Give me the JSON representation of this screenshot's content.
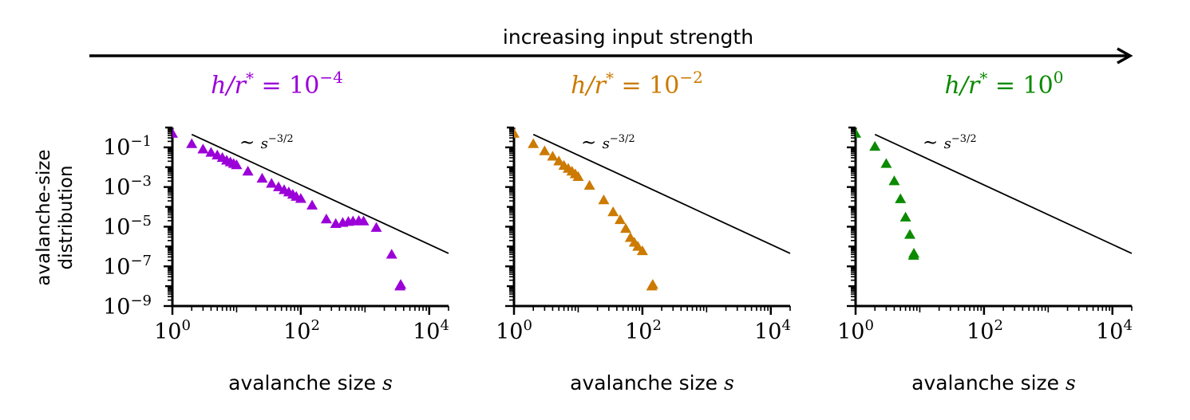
{
  "header": {
    "text": "increasing input strength"
  },
  "y_axis_label": {
    "line1": "avalanche-size",
    "line2": "distribution"
  },
  "chart_data": [
    {
      "type": "scatter",
      "title_var": "h/r",
      "title_sup": "*",
      "title_eq": " = 10",
      "title_exp": "−4",
      "color": "#9B00D8",
      "xlabel_text": "avalanche size ",
      "xlabel_var": "s",
      "xscale": "log",
      "yscale": "log",
      "xlim": [
        1,
        20000
      ],
      "ylim": [
        1e-09,
        1
      ],
      "x_ticks": [
        {
          "base": "10",
          "exp": "0",
          "value": 1
        },
        {
          "base": "10",
          "exp": "2",
          "value": 100
        },
        {
          "base": "10",
          "exp": "4",
          "value": 10000
        }
      ],
      "y_ticks": [
        {
          "base": "10",
          "exp": "−1",
          "value": 0.1
        },
        {
          "base": "10",
          "exp": "−3",
          "value": 0.001
        },
        {
          "base": "10",
          "exp": "−5",
          "value": 1e-05
        },
        {
          "base": "10",
          "exp": "−7",
          "value": 1e-07
        },
        {
          "base": "10",
          "exp": "−9",
          "value": 1e-09
        }
      ],
      "reference_line": {
        "label_prefix": "∼ ",
        "label_base": "s",
        "label_exp": "−3/2",
        "x": [
          2,
          20000
        ],
        "y": [
          0.45,
          4.5e-07
        ]
      },
      "points": [
        {
          "x": 1,
          "y": 0.5
        },
        {
          "x": 2,
          "y": 0.15
        },
        {
          "x": 3,
          "y": 0.08
        },
        {
          "x": 4,
          "y": 0.055
        },
        {
          "x": 5,
          "y": 0.04
        },
        {
          "x": 6,
          "y": 0.03
        },
        {
          "x": 7,
          "y": 0.022
        },
        {
          "x": 8,
          "y": 0.018
        },
        {
          "x": 9,
          "y": 0.015
        },
        {
          "x": 10,
          "y": 0.013
        },
        {
          "x": 15,
          "y": 0.0062
        },
        {
          "x": 25,
          "y": 0.0027
        },
        {
          "x": 35,
          "y": 0.0015
        },
        {
          "x": 45,
          "y": 0.001
        },
        {
          "x": 55,
          "y": 0.00072
        },
        {
          "x": 65,
          "y": 0.00055
        },
        {
          "x": 75,
          "y": 0.00042
        },
        {
          "x": 85,
          "y": 0.00033
        },
        {
          "x": 100,
          "y": 0.00026
        },
        {
          "x": 150,
          "y": 0.00012
        },
        {
          "x": 250,
          "y": 2.4e-05
        },
        {
          "x": 350,
          "y": 1.4e-05
        },
        {
          "x": 450,
          "y": 1.6e-05
        },
        {
          "x": 550,
          "y": 1.8e-05
        },
        {
          "x": 650,
          "y": 1.9e-05
        },
        {
          "x": 800,
          "y": 2e-05
        },
        {
          "x": 950,
          "y": 1.9e-05
        },
        {
          "x": 1500,
          "y": 9e-06
        },
        {
          "x": 2600,
          "y": 4e-07
        },
        {
          "x": 3500,
          "y": 1e-08
        },
        {
          "x": 3600,
          "y": 1.2e-08
        }
      ]
    },
    {
      "type": "scatter",
      "title_var": "h/r",
      "title_sup": "*",
      "title_eq": " = 10",
      "title_exp": "−2",
      "color": "#CC7A00",
      "xlabel_text": "avalanche size ",
      "xlabel_var": "s",
      "xscale": "log",
      "yscale": "log",
      "xlim": [
        1,
        20000
      ],
      "ylim": [
        1e-09,
        1
      ],
      "x_ticks": [
        {
          "base": "10",
          "exp": "0",
          "value": 1
        },
        {
          "base": "10",
          "exp": "2",
          "value": 100
        },
        {
          "base": "10",
          "exp": "4",
          "value": 10000
        }
      ],
      "y_ticks": [
        {
          "value": 0.1
        },
        {
          "value": 0.001
        },
        {
          "value": 1e-05
        },
        {
          "value": 1e-07
        },
        {
          "value": 1e-09
        }
      ],
      "reference_line": {
        "label_prefix": "∼ ",
        "label_base": "s",
        "label_exp": "−3/2",
        "x": [
          2,
          20000
        ],
        "y": [
          0.45,
          4.5e-07
        ]
      },
      "points": [
        {
          "x": 1,
          "y": 0.5
        },
        {
          "x": 2,
          "y": 0.15
        },
        {
          "x": 3,
          "y": 0.065
        },
        {
          "x": 4,
          "y": 0.035
        },
        {
          "x": 5,
          "y": 0.02
        },
        {
          "x": 6,
          "y": 0.012
        },
        {
          "x": 7,
          "y": 0.0085
        },
        {
          "x": 8,
          "y": 0.0062
        },
        {
          "x": 9,
          "y": 0.0045
        },
        {
          "x": 10,
          "y": 0.0033
        },
        {
          "x": 15,
          "y": 0.0012
        },
        {
          "x": 25,
          "y": 0.00022
        },
        {
          "x": 35,
          "y": 5.5e-05
        },
        {
          "x": 45,
          "y": 2.2e-05
        },
        {
          "x": 55,
          "y": 8e-06
        },
        {
          "x": 65,
          "y": 2.8e-06
        },
        {
          "x": 75,
          "y": 1.6e-06
        },
        {
          "x": 85,
          "y": 1e-06
        },
        {
          "x": 100,
          "y": 6e-07
        },
        {
          "x": 140,
          "y": 1e-08
        },
        {
          "x": 145,
          "y": 1.2e-08
        }
      ]
    },
    {
      "type": "scatter",
      "title_var": "h/r",
      "title_sup": "*",
      "title_eq": " = 10",
      "title_exp": "0",
      "color": "#0B8A00",
      "xlabel_text": "avalanche size ",
      "xlabel_var": "s",
      "xscale": "log",
      "yscale": "log",
      "xlim": [
        1,
        20000
      ],
      "ylim": [
        1e-09,
        1
      ],
      "x_ticks": [
        {
          "base": "10",
          "exp": "0",
          "value": 1
        },
        {
          "base": "10",
          "exp": "2",
          "value": 100
        },
        {
          "base": "10",
          "exp": "4",
          "value": 10000
        }
      ],
      "y_ticks": [
        {
          "value": 0.1
        },
        {
          "value": 0.001
        },
        {
          "value": 1e-05
        },
        {
          "value": 1e-07
        },
        {
          "value": 1e-09
        }
      ],
      "reference_line": {
        "label_prefix": "∼ ",
        "label_base": "s",
        "label_exp": "−3/2",
        "x": [
          2,
          20000
        ],
        "y": [
          0.45,
          4.5e-07
        ]
      },
      "points": [
        {
          "x": 1,
          "y": 0.5
        },
        {
          "x": 2,
          "y": 0.11
        },
        {
          "x": 3,
          "y": 0.015
        },
        {
          "x": 4,
          "y": 0.002
        },
        {
          "x": 5,
          "y": 0.00025
        },
        {
          "x": 6,
          "y": 3e-05
        },
        {
          "x": 7,
          "y": 4e-06
        },
        {
          "x": 8,
          "y": 3.5e-07
        },
        {
          "x": 8.1,
          "y": 4.5e-07
        }
      ]
    }
  ]
}
